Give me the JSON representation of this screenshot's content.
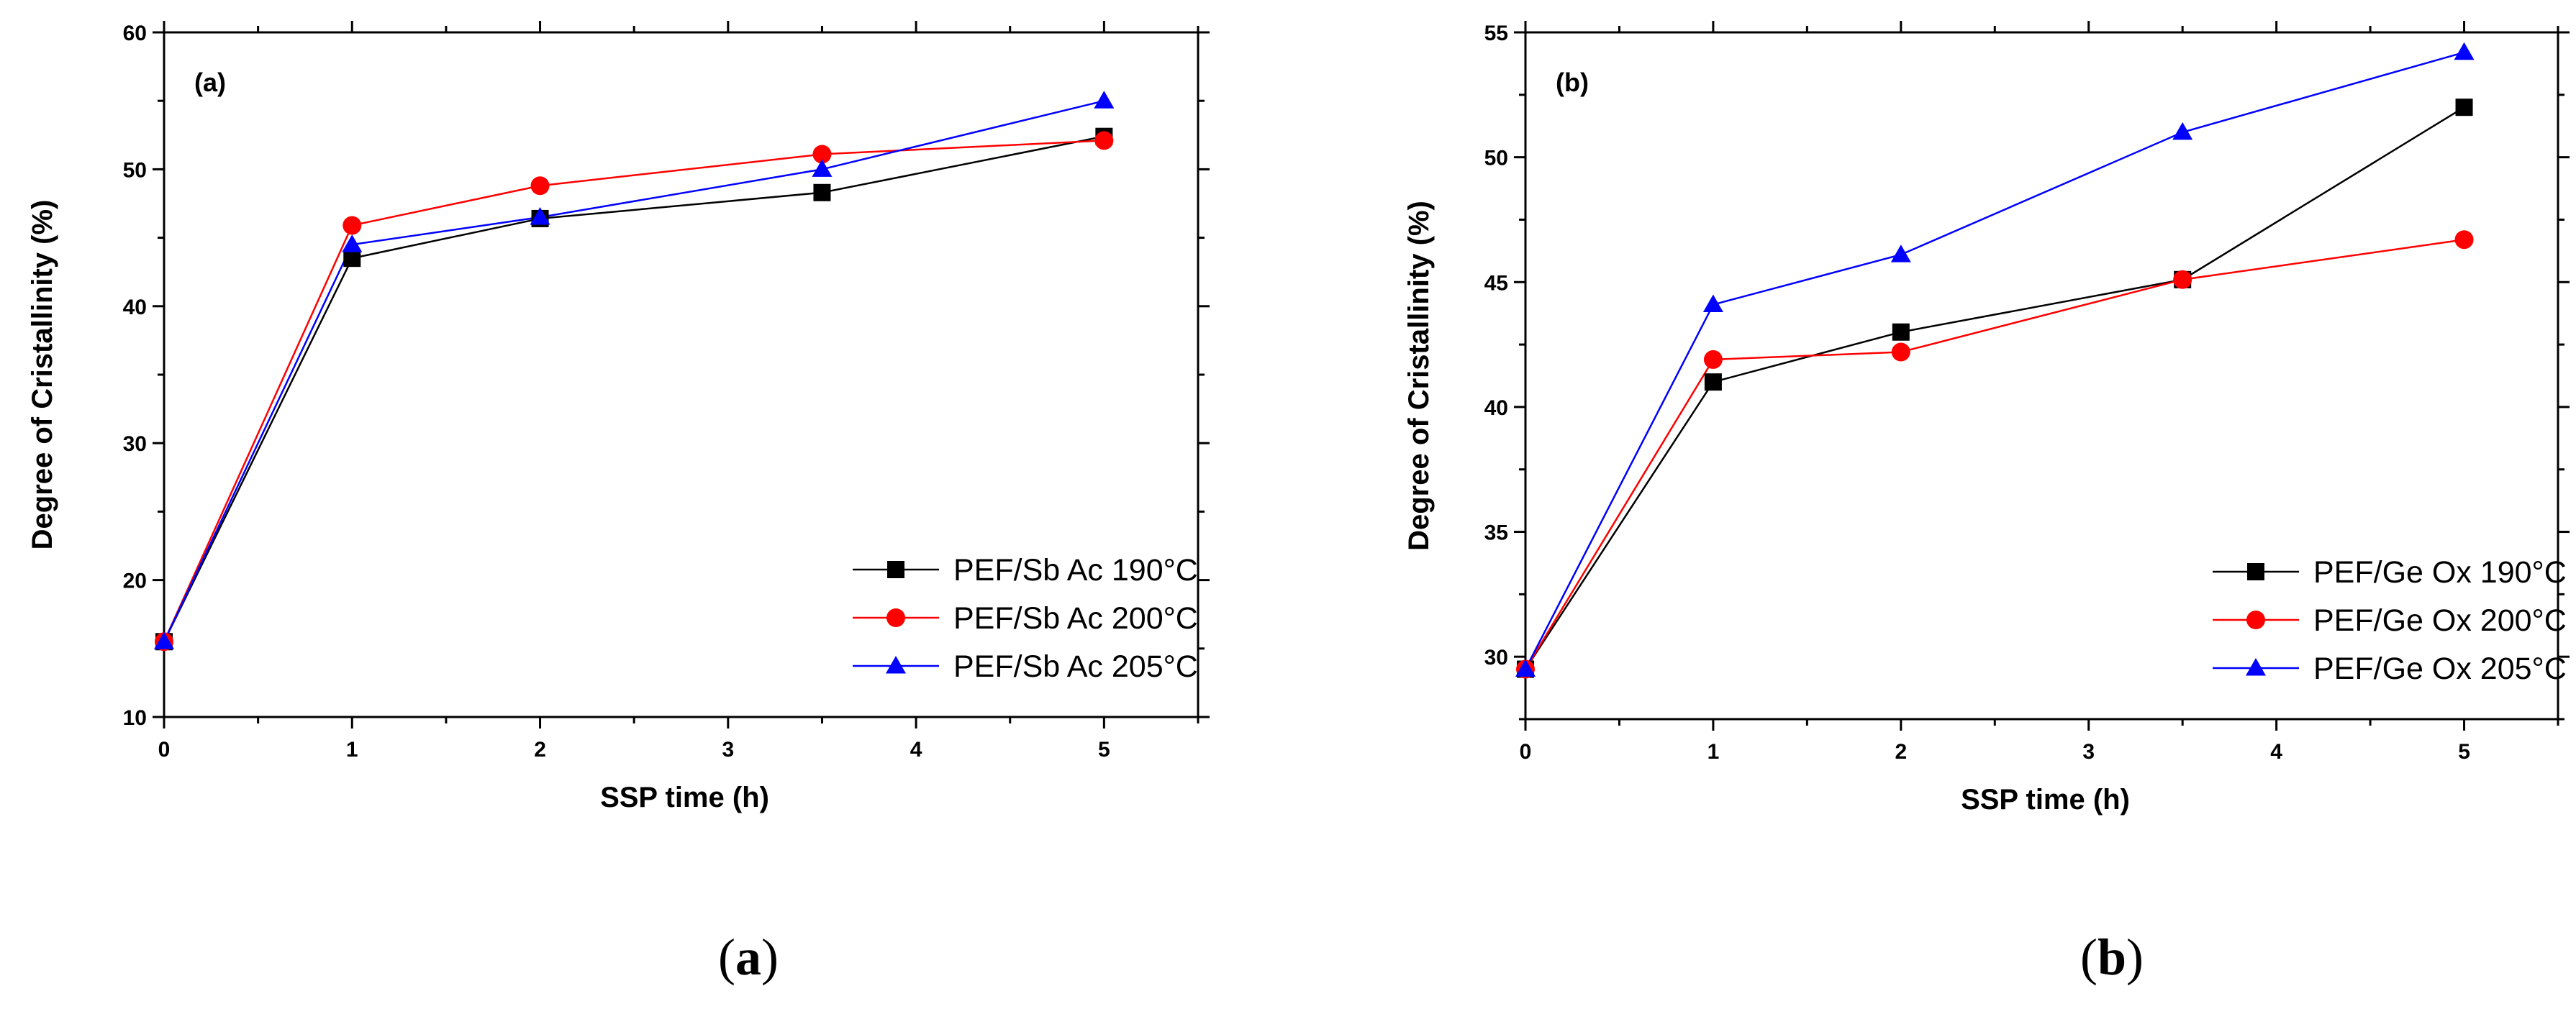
{
  "chart_data": [
    {
      "type": "line",
      "panel_label": "(a)",
      "caption": "(a)",
      "caption_letter": "a",
      "xlabel": "SSP time (h)",
      "ylabel": "Degree of Cristallinity (%)",
      "xlim": [
        0,
        5.5
      ],
      "ylim": [
        10,
        60
      ],
      "xticks": [
        0,
        1,
        2,
        3,
        4,
        5
      ],
      "yticks": [
        10,
        20,
        30,
        40,
        50,
        60
      ],
      "legend_position": "bottom-right",
      "series": [
        {
          "name": "PEF/Sb Ac 190°C",
          "color": "#000000",
          "marker": "square",
          "x": [
            0,
            1,
            2,
            3.5,
            5
          ],
          "y": [
            15.5,
            43.5,
            46.4,
            48.3,
            52.4
          ]
        },
        {
          "name": "PEF/Sb Ac 200°C",
          "color": "#ff0000",
          "marker": "circle",
          "x": [
            0,
            1,
            2,
            3.5,
            5
          ],
          "y": [
            15.5,
            45.9,
            48.8,
            51.1,
            52.1
          ]
        },
        {
          "name": "PEF/Sb Ac 205°C",
          "color": "#0000ff",
          "marker": "triangle",
          "x": [
            0,
            1,
            2,
            3.5,
            5
          ],
          "y": [
            15.5,
            44.5,
            46.5,
            50.0,
            55.0
          ]
        }
      ]
    },
    {
      "type": "line",
      "panel_label": "(b)",
      "caption": "(b)",
      "caption_letter": "b",
      "xlabel": "SSP time (h)",
      "ylabel": "Degree of Cristallinity (%)",
      "xlim": [
        0,
        5.5
      ],
      "ylim": [
        27.5,
        55
      ],
      "xticks": [
        0,
        1,
        2,
        3,
        4,
        5
      ],
      "yticks": [
        30,
        35,
        40,
        45,
        50,
        55
      ],
      "legend_position": "bottom-right",
      "series": [
        {
          "name": "PEF/Ge Ox 190°C",
          "color": "#000000",
          "marker": "square",
          "x": [
            0,
            1,
            2,
            3.5,
            5
          ],
          "y": [
            29.5,
            41.0,
            43.0,
            45.1,
            52.0
          ]
        },
        {
          "name": "PEF/Ge Ox 200°C",
          "color": "#ff0000",
          "marker": "circle",
          "x": [
            0,
            1,
            2,
            3.5,
            5
          ],
          "y": [
            29.5,
            41.9,
            42.2,
            45.1,
            46.7
          ]
        },
        {
          "name": "PEF/Ge Ox 205°C",
          "color": "#0000ff",
          "marker": "triangle",
          "x": [
            0,
            1,
            2,
            3.5,
            5
          ],
          "y": [
            29.5,
            44.1,
            46.1,
            51.0,
            54.2
          ]
        }
      ]
    }
  ]
}
